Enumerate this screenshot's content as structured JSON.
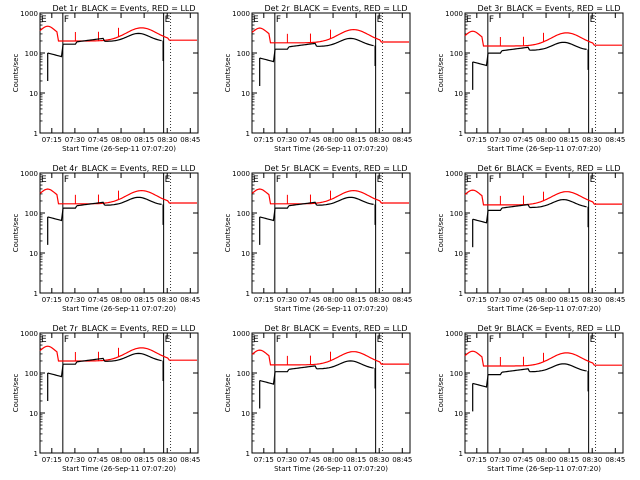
{
  "colors": {
    "background": "#ffffff",
    "axes": "#000000",
    "events": "#000000",
    "lld": "#ff0000"
  },
  "chart_data": [
    {
      "type": "line",
      "title": "Det 1r_BLACK = Events, RED = LLD",
      "xlabel": "Start Time (26-Sep-11 07:07:20)",
      "ylabel": "Counts/sec",
      "yscale": "log",
      "ylim": [
        1,
        1000
      ],
      "xtick_labels": [
        "07:15",
        "07:30",
        "07:45",
        "08:00",
        "08:15",
        "08:30",
        "08:45"
      ],
      "ytick_labels": [
        "1",
        "10",
        "100",
        "1000"
      ],
      "markers": [
        {
          "label": "E",
          "x": "07:07:20"
        },
        {
          "label": "F",
          "x": "07:22:10"
        },
        {
          "label": "E",
          "x": "08:27:40"
        }
      ],
      "series": [
        {
          "key": "events",
          "color": "#000000",
          "style": "solid",
          "level": "events"
        },
        {
          "key": "lld",
          "color": "#ff0000",
          "style": "dotted",
          "level": "lld"
        }
      ],
      "scale": {
        "events": 1.0,
        "lld": 1.0
      }
    },
    {
      "type": "line",
      "title": "Det 2r_BLACK = Events, RED = LLD",
      "xlabel": "Start Time (26-Sep-11 07:07:20)",
      "ylabel": "Counts/sec",
      "yscale": "log",
      "ylim": [
        1,
        1000
      ],
      "xtick_labels": [
        "07:15",
        "07:30",
        "07:45",
        "08:00",
        "08:15",
        "08:30",
        "08:45"
      ],
      "ytick_labels": [
        "1",
        "10",
        "100",
        "1000"
      ],
      "markers": [
        {
          "label": "E",
          "x": "07:07:20"
        },
        {
          "label": "F",
          "x": "07:22:10"
        },
        {
          "label": "E",
          "x": "08:27:40"
        }
      ],
      "series": [
        {
          "key": "events",
          "color": "#000000",
          "style": "solid",
          "level": "events"
        },
        {
          "key": "lld",
          "color": "#ff0000",
          "style": "dotted",
          "level": "lld"
        }
      ],
      "scale": {
        "events": 0.75,
        "lld": 0.9
      }
    },
    {
      "type": "line",
      "title": "Det 3r_BLACK = Events, RED = LLD",
      "xlabel": "Start Time (26-Sep-11 07:07:20)",
      "ylabel": "Counts/sec",
      "yscale": "log",
      "ylim": [
        1,
        1000
      ],
      "xtick_labels": [
        "07:15",
        "07:30",
        "07:45",
        "08:00",
        "08:15",
        "08:30",
        "08:45"
      ],
      "ytick_labels": [
        "1",
        "10",
        "100",
        "1000"
      ],
      "markers": [
        {
          "label": "E",
          "x": "07:07:20"
        },
        {
          "label": "F",
          "x": "07:22:10"
        },
        {
          "label": "E",
          "x": "08:27:40"
        }
      ],
      "series": [
        {
          "key": "events",
          "color": "#000000",
          "style": "solid",
          "level": "events"
        },
        {
          "key": "lld",
          "color": "#ff0000",
          "style": "dotted",
          "level": "lld"
        }
      ],
      "scale": {
        "events": 0.6,
        "lld": 0.75
      }
    },
    {
      "type": "line",
      "title": "Det 4r_BLACK = Events, RED = LLD",
      "xlabel": "Start Time (26-Sep-11 07:07:20)",
      "ylabel": "Counts/sec",
      "yscale": "log",
      "ylim": [
        1,
        1000
      ],
      "xtick_labels": [
        "07:15",
        "07:30",
        "07:45",
        "08:00",
        "08:15",
        "08:30",
        "08:45"
      ],
      "ytick_labels": [
        "1",
        "10",
        "100",
        "1000"
      ],
      "markers": [
        {
          "label": "E",
          "x": "07:07:20"
        },
        {
          "label": "F",
          "x": "07:22:10"
        },
        {
          "label": "E",
          "x": "08:27:40"
        }
      ],
      "series": [
        {
          "key": "events",
          "color": "#000000",
          "style": "solid",
          "level": "events"
        },
        {
          "key": "lld",
          "color": "#ff0000",
          "style": "dotted",
          "level": "lld"
        }
      ],
      "scale": {
        "events": 0.8,
        "lld": 0.85
      }
    },
    {
      "type": "line",
      "title": "Det 5r_BLACK = Events, RED = LLD",
      "xlabel": "Start Time (26-Sep-11 07:07:20)",
      "ylabel": "Counts/sec",
      "yscale": "log",
      "ylim": [
        1,
        1000
      ],
      "xtick_labels": [
        "07:15",
        "07:30",
        "07:45",
        "08:00",
        "08:15",
        "08:30",
        "08:45"
      ],
      "ytick_labels": [
        "1",
        "10",
        "100",
        "1000"
      ],
      "markers": [
        {
          "label": "E",
          "x": "07:07:20"
        },
        {
          "label": "F",
          "x": "07:22:10"
        },
        {
          "label": "E",
          "x": "08:27:40"
        }
      ],
      "series": [
        {
          "key": "events",
          "color": "#000000",
          "style": "solid",
          "level": "events"
        },
        {
          "key": "lld",
          "color": "#ff0000",
          "style": "dotted",
          "level": "lld"
        }
      ],
      "scale": {
        "events": 0.8,
        "lld": 0.85
      }
    },
    {
      "type": "line",
      "title": "Det 6r_BLACK = Events, RED = LLD",
      "xlabel": "Start Time (26-Sep-11 07:07:20)",
      "ylabel": "Counts/sec",
      "yscale": "log",
      "ylim": [
        1,
        1000
      ],
      "xtick_labels": [
        "07:15",
        "07:30",
        "07:45",
        "08:00",
        "08:15",
        "08:30",
        "08:45"
      ],
      "ytick_labels": [
        "1",
        "10",
        "100",
        "1000"
      ],
      "markers": [
        {
          "label": "E",
          "x": "07:07:20"
        },
        {
          "label": "F",
          "x": "07:22:10"
        },
        {
          "label": "E",
          "x": "08:27:40"
        }
      ],
      "series": [
        {
          "key": "events",
          "color": "#000000",
          "style": "solid",
          "level": "events"
        },
        {
          "key": "lld",
          "color": "#ff0000",
          "style": "dotted",
          "level": "lld"
        }
      ],
      "scale": {
        "events": 0.7,
        "lld": 0.8
      }
    },
    {
      "type": "line",
      "title": "Det 7r_BLACK = Events, RED = LLD",
      "xlabel": "Start Time (26-Sep-11 07:07:20)",
      "ylabel": "Counts/sec",
      "yscale": "log",
      "ylim": [
        1,
        1000
      ],
      "xtick_labels": [
        "07:15",
        "07:30",
        "07:45",
        "08:00",
        "08:15",
        "08:30",
        "08:45"
      ],
      "ytick_labels": [
        "1",
        "10",
        "100",
        "1000"
      ],
      "markers": [
        {
          "label": "E",
          "x": "07:07:20"
        },
        {
          "label": "F",
          "x": "07:22:10"
        },
        {
          "label": "E",
          "x": "08:27:40"
        }
      ],
      "series": [
        {
          "key": "events",
          "color": "#000000",
          "style": "solid",
          "level": "events"
        },
        {
          "key": "lld",
          "color": "#ff0000",
          "style": "dotted",
          "level": "lld"
        }
      ],
      "scale": {
        "events": 1.0,
        "lld": 1.0
      }
    },
    {
      "type": "line",
      "title": "Det 8r_BLACK = Events, RED = LLD",
      "xlabel": "Start Time (26-Sep-11 07:07:20)",
      "ylabel": "Counts/sec",
      "yscale": "log",
      "ylim": [
        1,
        1000
      ],
      "xtick_labels": [
        "07:15",
        "07:30",
        "07:45",
        "08:00",
        "08:15",
        "08:30",
        "08:45"
      ],
      "ytick_labels": [
        "1",
        "10",
        "100",
        "1000"
      ],
      "markers": [
        {
          "label": "E",
          "x": "07:07:20"
        },
        {
          "label": "F",
          "x": "07:22:10"
        },
        {
          "label": "E",
          "x": "08:27:40"
        }
      ],
      "series": [
        {
          "key": "events",
          "color": "#000000",
          "style": "solid",
          "level": "events"
        },
        {
          "key": "lld",
          "color": "#ff0000",
          "style": "dotted",
          "level": "lld"
        }
      ],
      "scale": {
        "events": 0.65,
        "lld": 0.8
      }
    },
    {
      "type": "line",
      "title": "Det 9r_BLACK = Events, RED = LLD",
      "xlabel": "Start Time (26-Sep-11 07:07:20)",
      "ylabel": "Counts/sec",
      "yscale": "log",
      "ylim": [
        1,
        1000
      ],
      "xtick_labels": [
        "07:15",
        "07:30",
        "07:45",
        "08:00",
        "08:15",
        "08:30",
        "08:45"
      ],
      "ytick_labels": [
        "1",
        "10",
        "100",
        "1000"
      ],
      "markers": [
        {
          "label": "E",
          "x": "07:07:20"
        },
        {
          "label": "F",
          "x": "07:22:10"
        },
        {
          "label": "E",
          "x": "08:27:40"
        }
      ],
      "series": [
        {
          "key": "events",
          "color": "#000000",
          "style": "solid",
          "level": "events"
        },
        {
          "key": "lld",
          "color": "#ff0000",
          "style": "dotted",
          "level": "lld"
        }
      ],
      "scale": {
        "events": 0.55,
        "lld": 0.75
      }
    }
  ]
}
